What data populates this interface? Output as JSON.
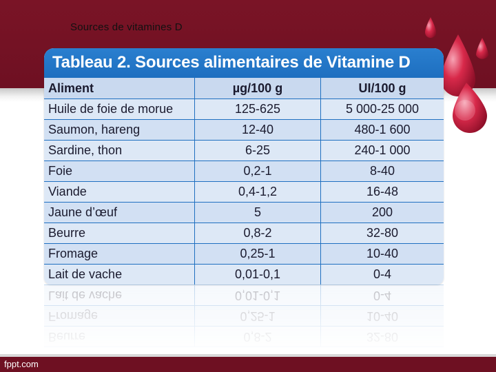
{
  "slide": {
    "title": "Sources de vitamines D",
    "footer": "fppt.com"
  },
  "table": {
    "title": "Tableau 2. Sources alimentaires de Vitamine D",
    "headers": [
      "Aliment",
      "µg/100 g",
      "UI/100 g"
    ],
    "rows": [
      [
        "Huile de foie de morue",
        "125-625",
        "5 000-25 000"
      ],
      [
        "Saumon, hareng",
        "12-40",
        "480-1 600"
      ],
      [
        "Sardine, thon",
        "6-25",
        "240-1 000"
      ],
      [
        "Foie",
        "0,2-1",
        "8-40"
      ],
      [
        "Viande",
        "0,4-1,2",
        "16-48"
      ],
      [
        "Jaune d’œuf",
        "5",
        "200"
      ],
      [
        "Beurre",
        "0,8-2",
        "32-80"
      ],
      [
        "Fromage",
        "0,25-1",
        "10-40"
      ],
      [
        "Lait de vache",
        "0,01-0,1",
        "0-4"
      ]
    ]
  },
  "colors": {
    "band": "#6e1022",
    "table_header_bar": "#1e6fc0",
    "cell": "#dde8f6",
    "drop": "#d4213f"
  }
}
